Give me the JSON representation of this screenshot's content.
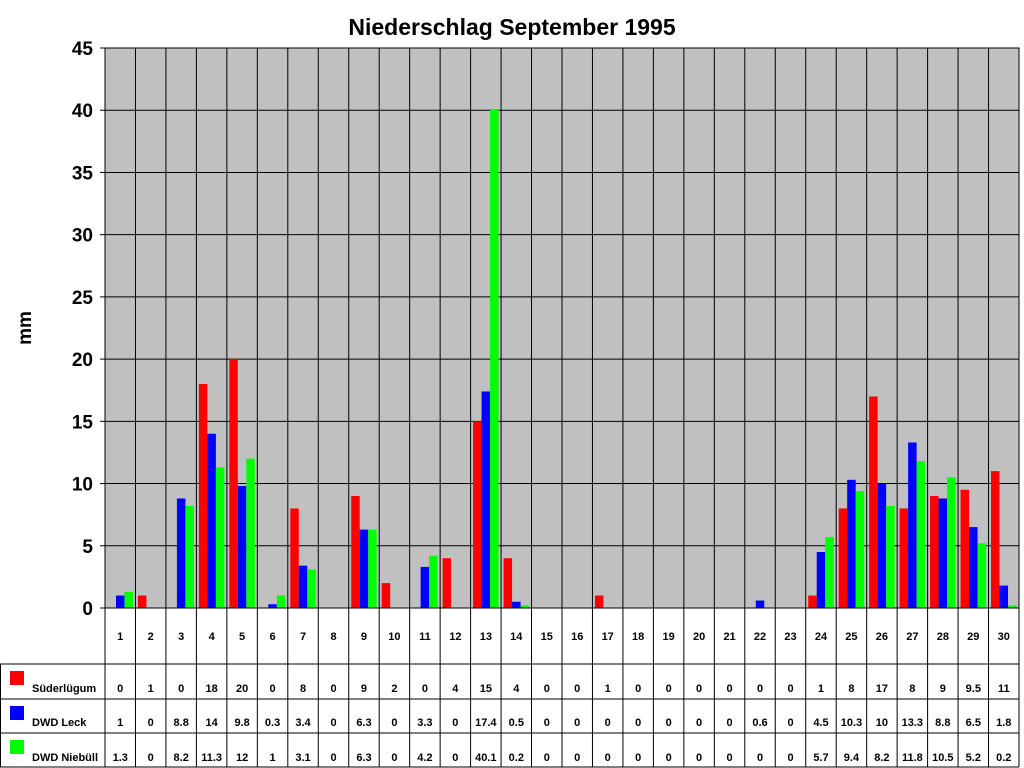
{
  "chart_data": {
    "type": "bar",
    "title": "Niederschlag September 1995",
    "ylabel": "mm",
    "ylim": [
      0,
      45
    ],
    "yticks": [
      0,
      5,
      10,
      15,
      20,
      25,
      30,
      35,
      40,
      45
    ],
    "categories": [
      "1",
      "2",
      "3",
      "4",
      "5",
      "6",
      "7",
      "8",
      "9",
      "10",
      "11",
      "12",
      "13",
      "14",
      "15",
      "16",
      "17",
      "18",
      "19",
      "20",
      "21",
      "22",
      "23",
      "24",
      "25",
      "26",
      "27",
      "28",
      "29",
      "30"
    ],
    "series": [
      {
        "name": "Süderlügum",
        "color": "#ff0000",
        "values": [
          0,
          1,
          0,
          18,
          20,
          0,
          8,
          0,
          9,
          2,
          0,
          4,
          15,
          4,
          0,
          0,
          1,
          0,
          0,
          0,
          0,
          0,
          0,
          1,
          8,
          17,
          8,
          9,
          9.5,
          11
        ]
      },
      {
        "name": "DWD Leck",
        "color": "#0000ff",
        "values": [
          1,
          0,
          8.8,
          14,
          9.8,
          0.3,
          3.4,
          0,
          6.3,
          0,
          3.3,
          0,
          17.4,
          0.5,
          0,
          0,
          0,
          0,
          0,
          0,
          0,
          0.6,
          0,
          4.5,
          10.3,
          10,
          13.3,
          8.8,
          6.5,
          1.8
        ]
      },
      {
        "name": "DWD Niebüll",
        "color": "#00ff00",
        "values": [
          1.3,
          0,
          8.2,
          11.3,
          12,
          1,
          3.1,
          0,
          6.3,
          0,
          4.2,
          0,
          40.1,
          0.2,
          0,
          0,
          0,
          0,
          0,
          0,
          0,
          0,
          0,
          5.7,
          9.4,
          8.2,
          11.8,
          10.5,
          5.2,
          0.2
        ]
      }
    ],
    "grid": true,
    "legend": "data table below chart",
    "plot_background": "#c0c0c0"
  }
}
